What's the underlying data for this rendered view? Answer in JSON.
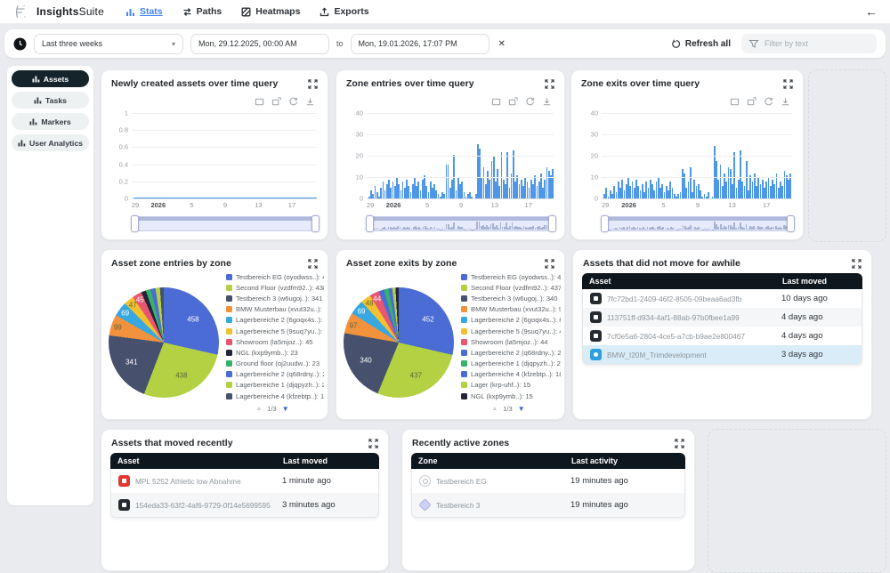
{
  "ui": {
    "caret": "▾",
    "close": "✕",
    "back_arrow": "←",
    "pager_up": "▲",
    "pager_down": "▼"
  },
  "navbar": {
    "brand_bold": "Insights",
    "brand_light": "Suite",
    "tabs": [
      {
        "label": "Stats",
        "active": true
      },
      {
        "label": "Paths",
        "active": false
      },
      {
        "label": "Heatmaps",
        "active": false
      },
      {
        "label": "Exports",
        "active": false
      }
    ]
  },
  "filter_bar": {
    "preset": "Last three weeks",
    "date_from": "Mon, 29.12.2025, 00:00 AM",
    "to_label": "to",
    "date_to": "Mon, 19.01.2026, 17:07 PM",
    "refresh_label": "Refresh all",
    "filter_placeholder": "Filter by text"
  },
  "sidebar": {
    "items": [
      {
        "label": "Assets",
        "active": true
      },
      {
        "label": "Tasks",
        "active": false
      },
      {
        "label": "Markers",
        "active": false
      },
      {
        "label": "User Analytics",
        "active": false
      }
    ]
  },
  "colors": {
    "accent_blue": "#4285f4",
    "bar_blue": "#4d96e8",
    "table_header": "#0f171e",
    "selected_row": "#d9ecf8",
    "sidebar_active": "#15232b"
  },
  "chart_data": [
    {
      "id": "newly_created",
      "type": "line",
      "title": "Newly created assets over time query",
      "ylim": [
        0,
        1
      ],
      "y_ticks": [
        "1",
        "0.8",
        "0.6",
        "0.4",
        "0.2",
        "0"
      ],
      "x_ticks": [
        {
          "label": "29",
          "pos": 0.01
        },
        {
          "label": "2026",
          "pos": 0.135,
          "bold": true
        },
        {
          "label": "5",
          "pos": 0.318
        },
        {
          "label": "9",
          "pos": 0.5
        },
        {
          "label": "13",
          "pos": 0.682
        },
        {
          "label": "17",
          "pos": 0.864
        }
      ],
      "values": [
        0,
        0,
        0,
        0,
        0,
        0,
        0,
        0,
        0,
        0,
        0,
        0,
        0,
        0,
        0,
        0,
        0,
        0,
        0,
        0,
        0,
        0
      ]
    },
    {
      "id": "zone_entries",
      "type": "bar",
      "title": "Zone entries over time query",
      "ylim": [
        0,
        40
      ],
      "y_ticks": [
        "40",
        "30",
        "20",
        "10",
        "0"
      ],
      "x_ticks": [
        {
          "label": "29",
          "pos": 0.01
        },
        {
          "label": "2026",
          "pos": 0.135,
          "bold": true
        },
        {
          "label": "5",
          "pos": 0.318
        },
        {
          "label": "9",
          "pos": 0.5
        },
        {
          "label": "13",
          "pos": 0.682
        },
        {
          "label": "17",
          "pos": 0.864
        }
      ],
      "values": [
        1,
        4,
        2,
        6,
        3,
        1,
        5,
        8,
        4,
        7,
        9,
        5,
        8,
        6,
        10,
        7,
        4,
        8,
        5,
        9,
        6,
        3,
        7,
        10,
        6,
        8,
        4,
        9,
        11,
        6,
        3,
        8,
        5,
        7,
        4,
        2,
        1,
        3,
        2,
        16,
        16,
        5,
        9,
        21,
        4,
        10,
        7,
        8,
        3,
        1,
        2,
        3,
        1,
        0,
        2,
        26,
        24,
        10,
        15,
        7,
        13,
        9,
        18,
        20,
        8,
        14,
        6,
        22,
        9,
        7,
        22,
        5,
        12,
        23,
        8,
        11,
        7,
        9,
        6,
        10,
        8,
        5,
        9,
        7,
        11,
        6,
        8,
        12,
        5,
        9,
        15,
        13,
        11,
        14
      ]
    },
    {
      "id": "zone_exits",
      "type": "bar",
      "title": "Zone exits over time query",
      "ylim": [
        0,
        40
      ],
      "y_ticks": [
        "40",
        "30",
        "20",
        "10",
        "0"
      ],
      "x_ticks": [
        {
          "label": "29",
          "pos": 0.01
        },
        {
          "label": "2026",
          "pos": 0.135,
          "bold": true
        },
        {
          "label": "5",
          "pos": 0.318
        },
        {
          "label": "9",
          "pos": 0.5
        },
        {
          "label": "13",
          "pos": 0.682
        },
        {
          "label": "17",
          "pos": 0.864
        }
      ],
      "values": [
        2,
        5,
        1,
        4,
        2,
        6,
        3,
        8,
        5,
        9,
        4,
        7,
        10,
        6,
        8,
        5,
        9,
        6,
        4,
        7,
        3,
        8,
        5,
        9,
        7,
        4,
        8,
        10,
        5,
        7,
        3,
        6,
        4,
        8,
        5,
        2,
        1,
        2,
        3,
        14,
        12,
        5,
        8,
        15,
        3,
        9,
        6,
        7,
        4,
        1,
        2,
        1,
        3,
        0,
        1,
        25,
        18,
        9,
        16,
        6,
        12,
        8,
        15,
        14,
        7,
        22,
        5,
        9,
        23,
        8,
        6,
        18,
        4,
        11,
        8,
        12,
        6,
        10,
        7,
        9,
        5,
        8,
        10,
        6,
        9,
        7,
        12,
        5,
        8,
        6,
        13,
        11,
        9,
        12
      ]
    },
    {
      "id": "entries_by_zone",
      "type": "pie",
      "title": "Asset zone entries by zone",
      "page": "1/3",
      "slices": [
        {
          "label": "Testbereich EG (oyodwss..)",
          "value": 458,
          "color": "#4b6bd5"
        },
        {
          "label": "Second Floor (vzdfm92..)",
          "value": 438,
          "color": "#b3d143"
        },
        {
          "label": "Testbereich 3 (w6ugoj..)",
          "value": 341,
          "color": "#47516e"
        },
        {
          "label": "BMW Musterbau (xvut32u..)",
          "value": 99,
          "color": "#f2923c"
        },
        {
          "label": "Lagerbereiche 2 (6goqx4s..)",
          "value": 69,
          "color": "#38a8e0"
        },
        {
          "label": "Lagerbereiche 5 (9suq7yu..)",
          "value": 47,
          "color": "#f2c12e"
        },
        {
          "label": "Showroom (la5mjoz..)",
          "value": 45,
          "color": "#e8566f"
        },
        {
          "label": "NGL (kxp9ymb..)",
          "value": 23,
          "color": "#23263a"
        },
        {
          "label": "Ground floor (oj2uudw..)",
          "value": 23,
          "color": "#35b26b"
        },
        {
          "label": "Lagerbereiche 2 (q68rdny..)",
          "value": 23,
          "color": "#4b6bd5"
        },
        {
          "label": "Lagerbereiche 1 (djqpyzh..)",
          "value": 21,
          "color": "#b3d143"
        },
        {
          "label": "Lagerbereiche 4 (kfzebtp..)",
          "value": 18,
          "color": "#47516e"
        }
      ]
    },
    {
      "id": "exits_by_zone",
      "type": "pie",
      "title": "Asset zone exits by zone",
      "page": "1/3",
      "slices": [
        {
          "label": "Testbereich EG (oyodwss..)",
          "value": 452,
          "color": "#4b6bd5"
        },
        {
          "label": "Second Floor (vzdfm92..)",
          "value": 437,
          "color": "#b3d143"
        },
        {
          "label": "Testbereich 3 (w6ugoj..)",
          "value": 340,
          "color": "#47516e"
        },
        {
          "label": "BMW Musterbau (xvut32u..)",
          "value": 97,
          "color": "#f2923c"
        },
        {
          "label": "Lagerbereiche 2 (6goqx4s..)",
          "value": 69,
          "color": "#38a8e0"
        },
        {
          "label": "Lagerbereiche 5 (9suq7yu..)",
          "value": 48,
          "color": "#f2c12e"
        },
        {
          "label": "Showroom (la5mjoz..)",
          "value": 44,
          "color": "#e8566f"
        },
        {
          "label": "Lagerbereiche 2 (q68rdny..)",
          "value": 25,
          "color": "#4b6bd5"
        },
        {
          "label": "Lagerbereiche 1 (djqpyzh..)",
          "value": 21,
          "color": "#35b26b"
        },
        {
          "label": "Lagerbereiche 4 (kfzebtp..)",
          "value": 18,
          "color": "#4b6bd5"
        },
        {
          "label": "Lager (krp-uhf..)",
          "value": 15,
          "color": "#b3d143"
        },
        {
          "label": "NGL (kxp9ymb..)",
          "value": 15,
          "color": "#23263a"
        }
      ]
    }
  ],
  "tables": {
    "not_moved": {
      "title": "Assets that did not move for awhile",
      "headers": [
        "Asset",
        "Last moved"
      ],
      "rows": [
        {
          "icon": "tag-dark",
          "name": "7fc72bd1-2409-46f2-8505-09beaa6ad3fb",
          "value": "10 days ago",
          "selected": false
        },
        {
          "icon": "tag-dark",
          "name": "113751ff-d934-4af1-88ab-97b0fbee1a99",
          "value": "4 days ago",
          "selected": false
        },
        {
          "icon": "tag-dark",
          "name": "7cf0e5a6-2804-4ce5-a7cb-b9ae2e800467",
          "value": "4 days ago",
          "selected": false
        },
        {
          "icon": "asset-blue",
          "name": "BMW_I20M_Trimdevelopment",
          "value": "3 days ago",
          "selected": true
        }
      ]
    },
    "moved_recently": {
      "title": "Assets that moved recently",
      "headers": [
        "Asset",
        "Last moved"
      ],
      "rows": [
        {
          "icon": "tag-red",
          "name": "MPL 5252 Athletic low Abnahme",
          "value": "1 minute ago",
          "selected": false
        },
        {
          "icon": "tag-dark",
          "name": "154eda33-63f2-4af6-9729-0f14e5699595",
          "value": "3 minutes ago",
          "selected": false
        }
      ]
    },
    "active_zones": {
      "title": "Recently active zones",
      "headers": [
        "Zone",
        "Last activity"
      ],
      "rows": [
        {
          "icon": "zone-circle",
          "name": "Testbereich EG",
          "value": "19 minutes ago",
          "selected": false
        },
        {
          "icon": "zone-diamond",
          "name": "Testbereich 3",
          "value": "19 minutes ago",
          "selected": false
        }
      ]
    }
  }
}
